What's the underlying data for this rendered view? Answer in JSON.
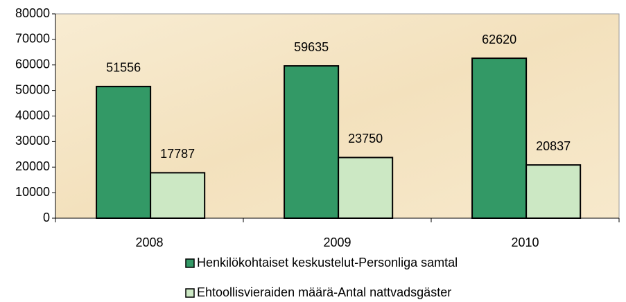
{
  "chart_data": {
    "type": "bar",
    "categories": [
      "2008",
      "2009",
      "2010"
    ],
    "series": [
      {
        "name": "Henkilökohtaiset keskustelut-Personliga samtal",
        "color": "#339966",
        "values": [
          51556,
          59635,
          62620
        ]
      },
      {
        "name": "Ehtoollisvieraiden määrä-Antal nattvadsgäster",
        "color": "#cce8c4",
        "values": [
          17787,
          23750,
          20837
        ]
      }
    ],
    "ylim": [
      0,
      80000
    ],
    "yticks": [
      0,
      10000,
      20000,
      30000,
      40000,
      50000,
      60000,
      70000,
      80000
    ],
    "legend": "bottom",
    "data_labels": true
  }
}
